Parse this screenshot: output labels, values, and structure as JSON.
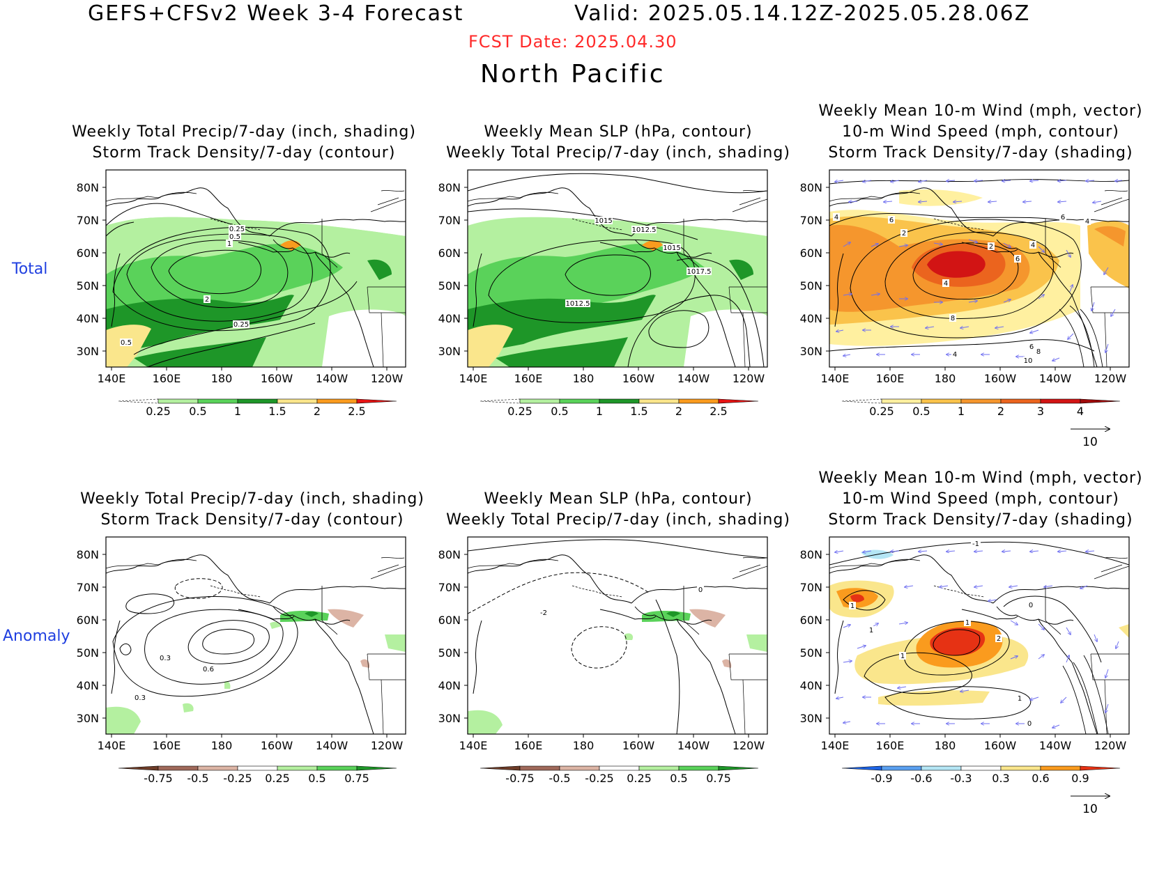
{
  "header": {
    "title": "GEFS+CFSv2 Week 3-4 Forecast",
    "valid": "Valid: 2025.05.14.12Z-2025.05.28.06Z",
    "fcst_date": "FCST Date: 2025.04.30",
    "region": "North Pacific"
  },
  "rows": {
    "total": "Total",
    "anomaly": "Anomaly"
  },
  "axes": {
    "lat_labels": [
      "80N",
      "70N",
      "60N",
      "50N",
      "40N",
      "30N"
    ],
    "lon_labels": [
      "140E",
      "160E",
      "180",
      "160W",
      "140W",
      "120W"
    ]
  },
  "panels": {
    "precip": {
      "title": [
        "Weekly Total Precip/7-day (inch, shading)",
        "Storm Track Density/7-day (contour)"
      ]
    },
    "slp": {
      "title": [
        "Weekly Mean SLP (hPa, contour)",
        "Weekly Total Precip/7-day (inch, shading)"
      ]
    },
    "wind": {
      "title": [
        "Weekly Mean 10-m Wind (mph, vector)",
        "10-m Wind Speed (mph, contour)",
        "Storm Track Density/7-day (shading)"
      ]
    }
  },
  "contour_labels": {
    "total_precip": [
      "0.25",
      "0.5",
      "1",
      "2",
      "0.25",
      "0.5"
    ],
    "total_slp": [
      "1015",
      "1012.5",
      "1015",
      "1017.5",
      "1012.5"
    ],
    "total_wind": [
      "4",
      "6",
      "2",
      "2",
      "4",
      "6",
      "4",
      "8",
      "6",
      "8",
      "4",
      "10",
      "6",
      "4"
    ],
    "anom_precip": [
      "0.3",
      "0.6",
      "0.3"
    ],
    "anom_slp": [
      "-2",
      "0"
    ],
    "anom_wind": [
      "-1",
      "1",
      "1",
      "1",
      "2",
      "1",
      "0",
      "0",
      "1"
    ]
  },
  "colorbars": {
    "total_precip": {
      "labels": [
        "0.25",
        "0.5",
        "1",
        "1.5",
        "2",
        "2.5"
      ],
      "colors": [
        "#ffffff",
        "#b4f0a0",
        "#5ad25a",
        "#1e9628",
        "#fae68c",
        "#fa9b1e",
        "#e61414"
      ]
    },
    "total_storm": {
      "labels": [
        "0.25",
        "0.5",
        "1",
        "2",
        "3",
        "4"
      ],
      "colors": [
        "#ffffff",
        "#fff0a0",
        "#fac34b",
        "#f5962d",
        "#eb641e",
        "#d21414",
        "#a00a0a"
      ]
    },
    "anom_precip": {
      "labels": [
        "-0.75",
        "-0.5",
        "-0.25",
        "0.25",
        "0.5",
        "0.75"
      ],
      "colors": [
        "#6e3c28",
        "#a0695a",
        "#dcb4a5",
        "#ffffff",
        "#b4f0a0",
        "#5ad25a",
        "#1e9628"
      ]
    },
    "anom_storm": {
      "labels": [
        "-0.9",
        "-0.6",
        "-0.3",
        "0.3",
        "0.6",
        "0.9"
      ],
      "colors": [
        "#1e64e6",
        "#5aa0f0",
        "#b4e6f5",
        "#ffffff",
        "#fae68c",
        "#fa9b1e",
        "#e63214"
      ]
    }
  },
  "vector_ref": {
    "label": "10"
  },
  "colors": {
    "fcst_date": "#ff2a2a",
    "row_label": "#1f3fe0",
    "vector": "#6e6ef0"
  }
}
